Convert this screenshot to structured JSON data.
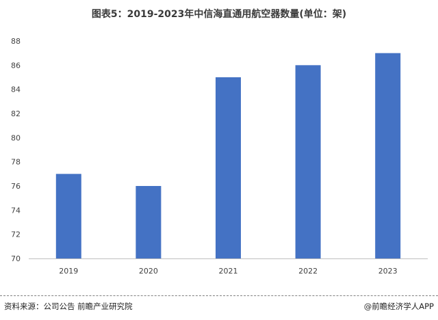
{
  "title": "图表5：2019-2023年中信海直通用航空器数量(单位：架)",
  "source": "资料来源：公司公告 前瞻产业研究院",
  "credit": "@前瞻经济学人APP",
  "chart_data": {
    "type": "bar",
    "title": "图表5：2019-2023年中信海直通用航空器数量(单位：架)",
    "categories": [
      "2019",
      "2020",
      "2021",
      "2022",
      "2023"
    ],
    "values": [
      77,
      76,
      85,
      86,
      87
    ],
    "ylim": [
      70,
      88
    ],
    "yticks": [
      70,
      72,
      74,
      76,
      78,
      80,
      82,
      84,
      86,
      88
    ],
    "xlabel": "",
    "ylabel": "",
    "grid": false,
    "bar_color": "#4472c4",
    "axis_color": "#bfbfbf"
  }
}
